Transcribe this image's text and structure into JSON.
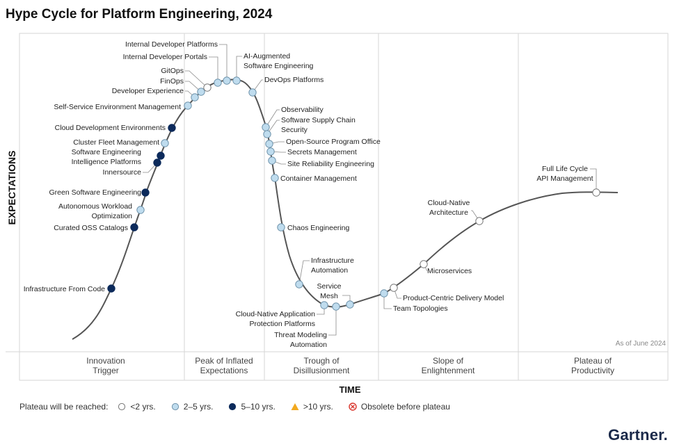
{
  "title": "Hype Cycle for Platform Engineering, 2024",
  "chart_data": {
    "type": "scatter",
    "title": "Hype Cycle for Platform Engineering, 2024",
    "ylabel": "EXPECTATIONS",
    "xlabel": "TIME",
    "as_of": "As of June 2024",
    "phases": [
      {
        "id": "innovation",
        "line1": "Innovation",
        "line2": "Trigger"
      },
      {
        "id": "peak",
        "line1": "Peak of Inflated",
        "line2": "Expectations"
      },
      {
        "id": "trough",
        "line1": "Trough of",
        "line2": "Disillusionment"
      },
      {
        "id": "slope",
        "line1": "Slope of",
        "line2": "Enlightenment"
      },
      {
        "id": "plateau",
        "line1": "Plateau of",
        "line2": "Productivity"
      }
    ],
    "colors": {
      "lt2": "#ffffff",
      "y2to5": "#bfdcee",
      "y5to10": "#0c2a5b",
      "gt10": "#f2a91f",
      "obsolete": "#d9342b",
      "curve": "#555555"
    },
    "technologies": [
      {
        "name": "Infrastructure From Code",
        "plateau": "5-10"
      },
      {
        "name": "Curated OSS Catalogs",
        "plateau": "5-10"
      },
      {
        "name": "Autonomous Workload Optimization",
        "plateau": "2-5"
      },
      {
        "name": "Green Software Engineering",
        "plateau": "5-10"
      },
      {
        "name": "Innersource",
        "plateau": "5-10"
      },
      {
        "name": "Software Engineering Intelligence Platforms",
        "plateau": "5-10"
      },
      {
        "name": "Cluster Fleet Management",
        "plateau": "2-5"
      },
      {
        "name": "Cloud Development Environments",
        "plateau": "5-10"
      },
      {
        "name": "Self-Service Environment Management",
        "plateau": "2-5"
      },
      {
        "name": "Developer Experience",
        "plateau": "2-5"
      },
      {
        "name": "FinOps",
        "plateau": "2-5"
      },
      {
        "name": "GitOps",
        "plateau": "<2"
      },
      {
        "name": "Internal Developer Portals",
        "plateau": "2-5"
      },
      {
        "name": "Internal Developer Platforms",
        "plateau": "2-5"
      },
      {
        "name": "AI-Augmented Software Engineering",
        "plateau": "2-5"
      },
      {
        "name": "DevOps Platforms",
        "plateau": "2-5"
      },
      {
        "name": "Observability",
        "plateau": "2-5"
      },
      {
        "name": "Software Supply Chain Security",
        "plateau": "2-5"
      },
      {
        "name": "Open-Source Program Office",
        "plateau": "2-5"
      },
      {
        "name": "Secrets Management",
        "plateau": "2-5"
      },
      {
        "name": "Site Reliability Engineering",
        "plateau": "2-5"
      },
      {
        "name": "Container Management",
        "plateau": "2-5"
      },
      {
        "name": "Chaos Engineering",
        "plateau": "2-5"
      },
      {
        "name": "Infrastructure Automation",
        "plateau": "2-5"
      },
      {
        "name": "Cloud-Native Application Protection Platforms",
        "plateau": "2-5"
      },
      {
        "name": "Threat Modeling Automation",
        "plateau": "2-5"
      },
      {
        "name": "Service Mesh",
        "plateau": "2-5"
      },
      {
        "name": "Team Topologies",
        "plateau": "2-5"
      },
      {
        "name": "Product-Centric Delivery Model",
        "plateau": "<2"
      },
      {
        "name": "Microservices",
        "plateau": "<2"
      },
      {
        "name": "Cloud-Native Architecture",
        "plateau": "<2"
      },
      {
        "name": "Full Life Cycle API Management",
        "plateau": "<2"
      }
    ]
  },
  "legend": {
    "label": "Plateau will be reached:",
    "items": [
      {
        "key": "lt2",
        "text": "<2 yrs."
      },
      {
        "key": "y2to5",
        "text": "2–5 yrs."
      },
      {
        "key": "y5to10",
        "text": "5–10 yrs."
      },
      {
        "key": "gt10",
        "text": ">10 yrs."
      },
      {
        "key": "obsolete",
        "text": "Obsolete before plateau"
      }
    ]
  },
  "brand": "Gartner."
}
